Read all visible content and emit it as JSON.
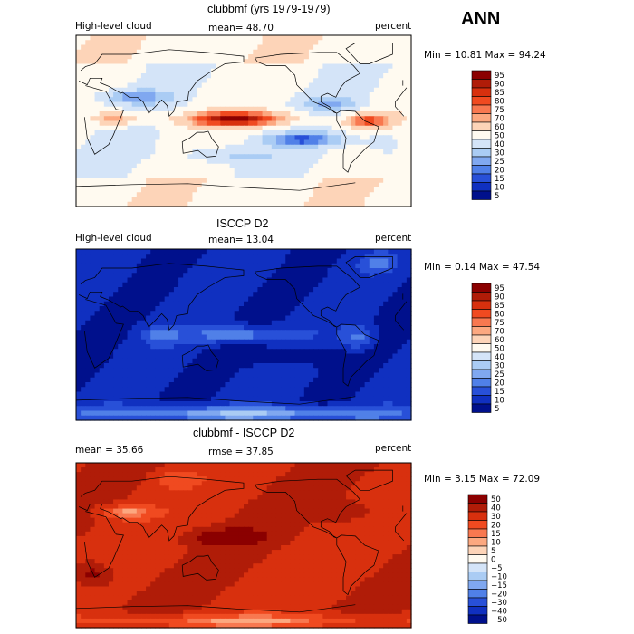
{
  "season": "ANN",
  "panels": [
    {
      "title": "clubbmf (yrs 1979-1979)",
      "left_label": "High-level cloud",
      "mean_text": "mean=  48.70",
      "right_label": "percent",
      "minmax_text": "Min =  10.81 Max =  94.24"
    },
    {
      "title": "ISCCP D2",
      "left_label": "High-level cloud",
      "mean_text": "mean=  13.04",
      "right_label": "percent",
      "minmax_text": "Min =   0.14 Max =  47.54"
    },
    {
      "title": "clubbmf - ISCCP D2",
      "left_label": "mean =  35.66",
      "mean_text": "rmse =  37.85",
      "right_label": "percent",
      "minmax_text": "Min =   3.15 Max =  72.09"
    }
  ],
  "chart_data": [
    {
      "type": "heatmap",
      "title": "clubbmf (yrs 1979-1979)",
      "variable": "High-level cloud",
      "units": "percent",
      "mean": 48.7,
      "min": 10.81,
      "max": 94.24,
      "colorbar": {
        "levels": [
          "95",
          "90",
          "85",
          "80",
          "75",
          "70",
          "60",
          "50",
          "40",
          "30",
          "25",
          "20",
          "15",
          "10",
          "5"
        ],
        "colors": [
          "#8b0000",
          "#b01c08",
          "#d8300e",
          "#f04a20",
          "#f87850",
          "#fca880",
          "#fdd4b8",
          "#fffaf0",
          "#d4e4f8",
          "#aaccf4",
          "#80a8f0",
          "#5080e8",
          "#2850d8",
          "#1030c0",
          "#00108c"
        ]
      }
    },
    {
      "type": "heatmap",
      "title": "ISCCP D2",
      "variable": "High-level cloud",
      "units": "percent",
      "mean": 13.04,
      "min": 0.14,
      "max": 47.54,
      "colorbar": {
        "levels": [
          "95",
          "90",
          "85",
          "80",
          "75",
          "70",
          "60",
          "50",
          "40",
          "30",
          "25",
          "20",
          "15",
          "10",
          "5"
        ],
        "colors": [
          "#8b0000",
          "#b01c08",
          "#d8300e",
          "#f04a20",
          "#f87850",
          "#fca880",
          "#fdd4b8",
          "#fffaf0",
          "#d4e4f8",
          "#aaccf4",
          "#80a8f0",
          "#5080e8",
          "#2850d8",
          "#1030c0",
          "#00108c"
        ]
      }
    },
    {
      "type": "heatmap",
      "title": "clubbmf - ISCCP D2",
      "units": "percent",
      "mean": 35.66,
      "rmse": 37.85,
      "min": 3.15,
      "max": 72.09,
      "colorbar": {
        "levels": [
          "50",
          "40",
          "30",
          "20",
          "15",
          "10",
          "5",
          "0",
          "−5",
          "−10",
          "−15",
          "−20",
          "−30",
          "−40",
          "−50"
        ],
        "colors": [
          "#8b0000",
          "#b01c08",
          "#d8300e",
          "#f04a20",
          "#f87850",
          "#fca880",
          "#fdd4b8",
          "#fffaf0",
          "#d4e4f8",
          "#aaccf4",
          "#80a8f0",
          "#5080e8",
          "#2850d8",
          "#1030c0",
          "#00108c"
        ]
      }
    }
  ]
}
